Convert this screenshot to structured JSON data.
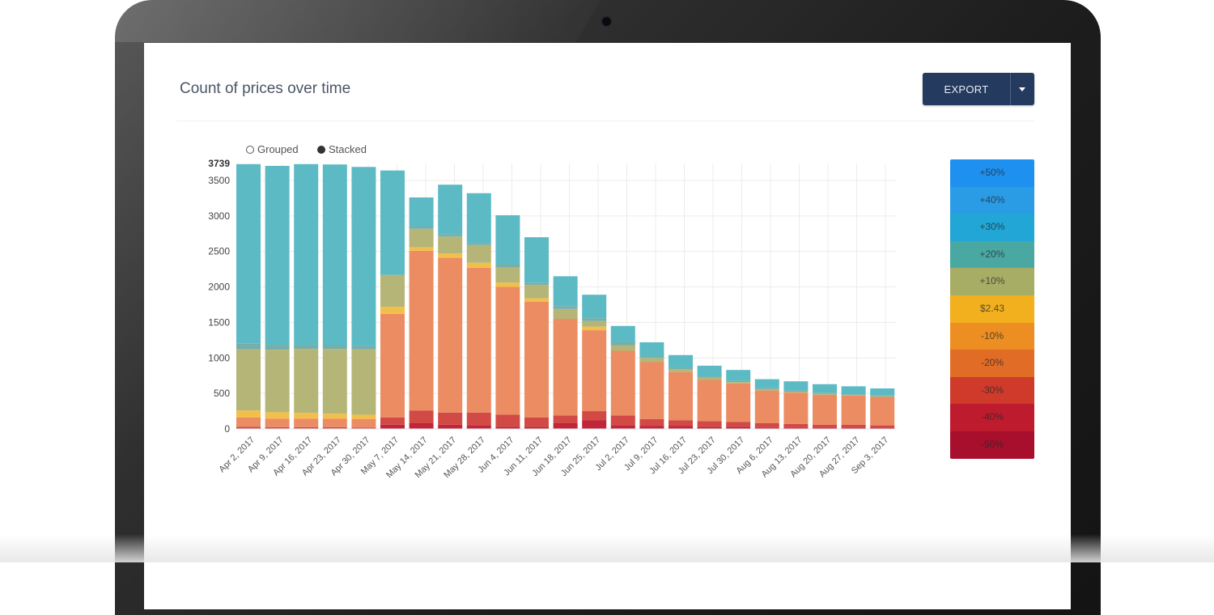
{
  "header": {
    "title": "Count of prices over time",
    "export_label": "EXPORT"
  },
  "toggle": {
    "grouped_label": "Grouped",
    "stacked_label": "Stacked",
    "selected": "Stacked"
  },
  "legend": [
    {
      "label": "+50%",
      "color": "#1e90f0"
    },
    {
      "label": "+40%",
      "color": "#2a9ce6"
    },
    {
      "label": "+30%",
      "color": "#21a6d6"
    },
    {
      "label": "+20%",
      "color": "#4aa8a3"
    },
    {
      "label": "+10%",
      "color": "#a8ad66"
    },
    {
      "label": "$2.43",
      "color": "#f2b01e"
    },
    {
      "label": "-10%",
      "color": "#ec8e22"
    },
    {
      "label": "-20%",
      "color": "#e06c26"
    },
    {
      "label": "-30%",
      "color": "#cf3a2b"
    },
    {
      "label": "-40%",
      "color": "#bf1b2e"
    },
    {
      "label": "-50%",
      "color": "#a80f2c"
    }
  ],
  "chart_data": {
    "type": "bar",
    "stacked": true,
    "title": "Count of prices over time",
    "categories": [
      "Apr 2, 2017",
      "Apr 9, 2017",
      "Apr 16, 2017",
      "Apr 23, 2017",
      "Apr 30, 2017",
      "May 7, 2017",
      "May 14, 2017",
      "May 21, 2017",
      "May 28, 2017",
      "Jun 4, 2017",
      "Jun 11, 2017",
      "Jun 18, 2017",
      "Jun 25, 2017",
      "Jul 2, 2017",
      "Jul 9, 2017",
      "Jul 16, 2017",
      "Jul 23, 2017",
      "Jul 30, 2017",
      "Aug 6, 2017",
      "Aug 13, 2017",
      "Aug 20, 2017",
      "Aug 27, 2017",
      "Sep 3, 2017"
    ],
    "yticks": [
      0,
      500,
      1000,
      1500,
      2000,
      2500,
      3000,
      3500
    ],
    "ymax_label": "3739",
    "ylim": [
      0,
      3739
    ],
    "grid": true,
    "series": [
      {
        "color": "#c0253a",
        "values": [
          10,
          10,
          10,
          10,
          10,
          60,
          80,
          60,
          50,
          30,
          30,
          80,
          120,
          50,
          40,
          40,
          30,
          30,
          20,
          20,
          20,
          20,
          20
        ]
      },
      {
        "color": "#d24a45",
        "values": [
          20,
          15,
          15,
          15,
          10,
          100,
          180,
          170,
          180,
          170,
          130,
          110,
          130,
          140,
          100,
          80,
          80,
          70,
          60,
          50,
          40,
          40,
          30
        ]
      },
      {
        "color": "#ec8c63",
        "values": [
          130,
          120,
          120,
          120,
          120,
          1460,
          2250,
          2180,
          2040,
          1800,
          1630,
          1360,
          1140,
          910,
          800,
          680,
          580,
          540,
          460,
          440,
          420,
          410,
          400
        ]
      },
      {
        "color": "#f2bf4a",
        "values": [
          100,
          90,
          80,
          70,
          60,
          100,
          50,
          60,
          70,
          60,
          50,
          0,
          50,
          0,
          0,
          0,
          0,
          0,
          0,
          0,
          0,
          0,
          0
        ]
      },
      {
        "color": "#b5b577",
        "values": [
          860,
          880,
          900,
          910,
          920,
          450,
          260,
          240,
          250,
          220,
          190,
          140,
          80,
          80,
          60,
          40,
          30,
          20,
          20,
          15,
          15,
          10,
          10
        ]
      },
      {
        "color": "#75aeaa",
        "values": [
          80,
          70,
          60,
          55,
          50,
          0,
          30,
          30,
          30,
          40,
          30,
          40,
          40,
          40,
          20,
          20,
          20,
          20,
          20,
          15,
          15,
          10,
          10
        ]
      },
      {
        "color": "#5cbac4",
        "values": [
          2530,
          2520,
          2545,
          2545,
          2520,
          1470,
          410,
          700,
          700,
          690,
          640,
          420,
          330,
          230,
          200,
          180,
          150,
          150,
          120,
          130,
          120,
          110,
          100
        ]
      }
    ]
  }
}
